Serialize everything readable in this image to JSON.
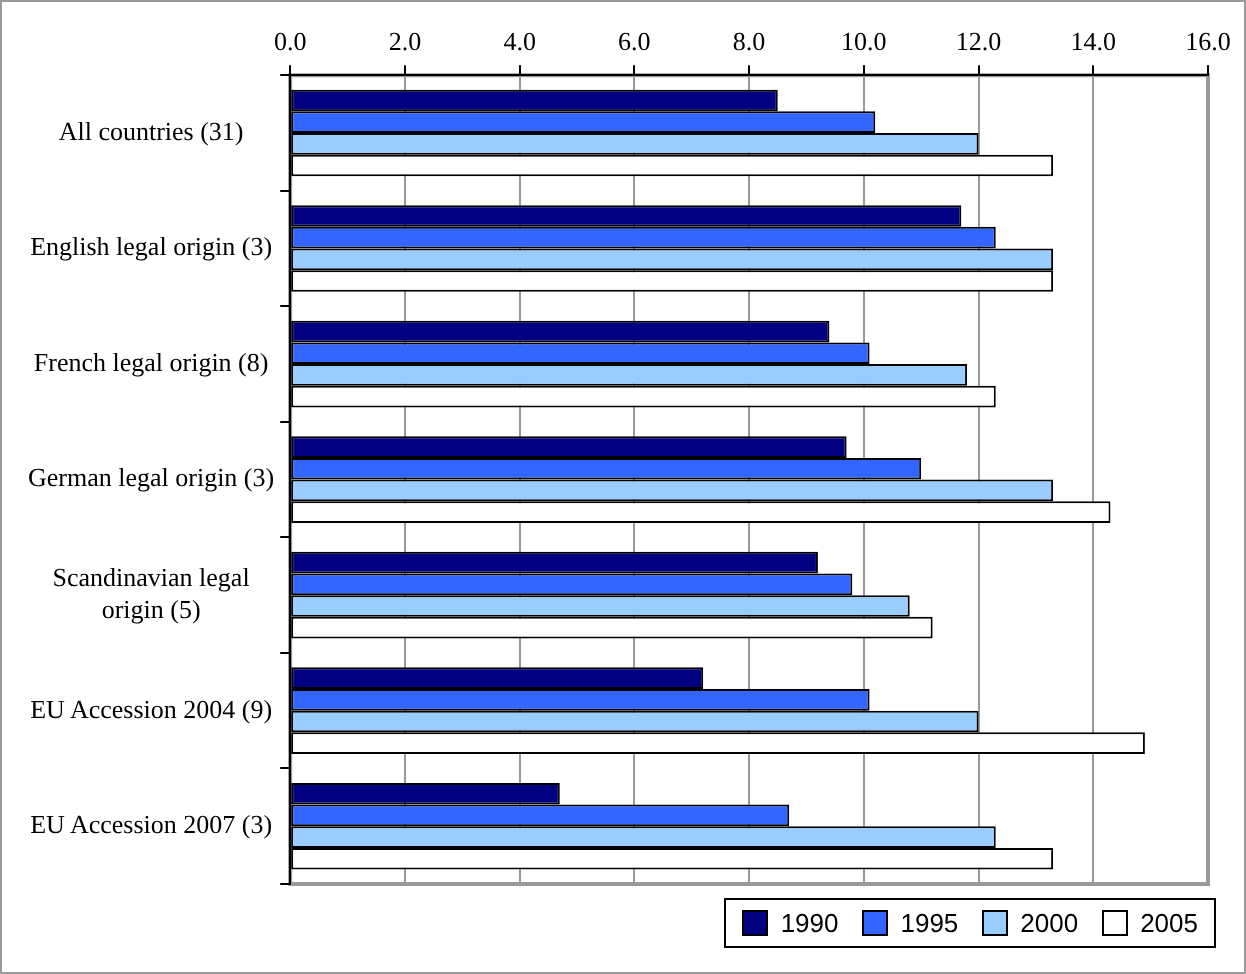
{
  "chart_data": {
    "type": "bar",
    "orientation": "horizontal",
    "categories": [
      "All countries (31)",
      "English legal origin (3)",
      "French legal origin (8)",
      "German legal origin (3)",
      "Scandinavian legal origin (5)",
      "EU Accession 2004 (9)",
      "EU Accession 2007 (3)"
    ],
    "series": [
      {
        "name": "1990",
        "color": "#000080",
        "values": [
          8.5,
          11.7,
          9.4,
          9.7,
          9.2,
          7.2,
          4.7
        ]
      },
      {
        "name": "1995",
        "color": "#3366ff",
        "values": [
          10.2,
          12.3,
          10.1,
          11.0,
          9.8,
          10.1,
          8.7
        ]
      },
      {
        "name": "2000",
        "color": "#99ccff",
        "values": [
          12.0,
          13.3,
          11.8,
          13.3,
          10.8,
          12.0,
          12.3
        ]
      },
      {
        "name": "2005",
        "color": "#ffffff",
        "values": [
          13.3,
          13.3,
          12.3,
          14.3,
          11.2,
          14.9,
          13.3
        ]
      }
    ],
    "xlim": [
      0,
      16
    ],
    "xticks": [
      {
        "value": 0,
        "label": "0.0"
      },
      {
        "value": 2,
        "label": "2.0"
      },
      {
        "value": 4,
        "label": "4.0"
      },
      {
        "value": 6,
        "label": "6.0"
      },
      {
        "value": 8,
        "label": "8.0"
      },
      {
        "value": 10,
        "label": "10.0"
      },
      {
        "value": 12,
        "label": "12.0"
      },
      {
        "value": 14,
        "label": "14.0"
      },
      {
        "value": 16,
        "label": "16.0"
      }
    ],
    "grid": "x",
    "legend": "bottom right"
  }
}
